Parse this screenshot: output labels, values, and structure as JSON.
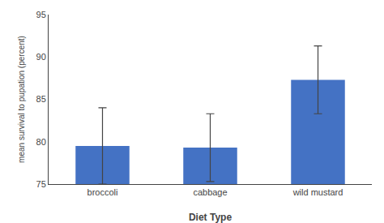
{
  "chart_data": {
    "type": "bar",
    "categories": [
      "broccoli",
      "cabbage",
      "wild mustard"
    ],
    "values": [
      79.5,
      79.3,
      87.3
    ],
    "errors": [
      4.5,
      4.0,
      4.0
    ],
    "color": "#4472C4",
    "xlabel": "Diet Type",
    "ylabel": "mean survival to pupation (percent)",
    "ylim": [
      75,
      95
    ],
    "yticks": [
      75,
      80,
      85,
      90,
      95
    ],
    "grid": false
  }
}
